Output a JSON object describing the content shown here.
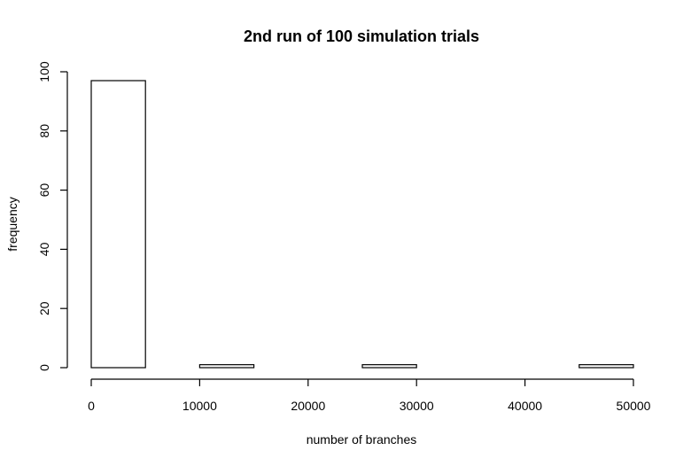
{
  "chart_data": {
    "type": "bar",
    "subtype": "histogram",
    "title": "2nd run of 100 simulation trials",
    "xlabel": "number of branches",
    "ylabel": "frequency",
    "bin_edges": [
      0,
      5000,
      10000,
      15000,
      20000,
      25000,
      30000,
      35000,
      40000,
      45000,
      50000
    ],
    "values": [
      97,
      0,
      1,
      0,
      0,
      1,
      0,
      0,
      0,
      1
    ],
    "xlim": [
      0,
      50000
    ],
    "ylim": [
      0,
      100
    ],
    "x_ticks": [
      0,
      10000,
      20000,
      30000,
      40000,
      50000
    ],
    "y_ticks": [
      0,
      20,
      40,
      60,
      80,
      100
    ],
    "x_tick_labels": [
      "0",
      "10000",
      "20000",
      "30000",
      "40000",
      "50000"
    ],
    "y_tick_labels": [
      "0",
      "20",
      "40",
      "60",
      "80",
      "100"
    ],
    "bar_fill": "#ffffff",
    "bar_stroke": "#000000",
    "grid": false,
    "legend": "none"
  }
}
